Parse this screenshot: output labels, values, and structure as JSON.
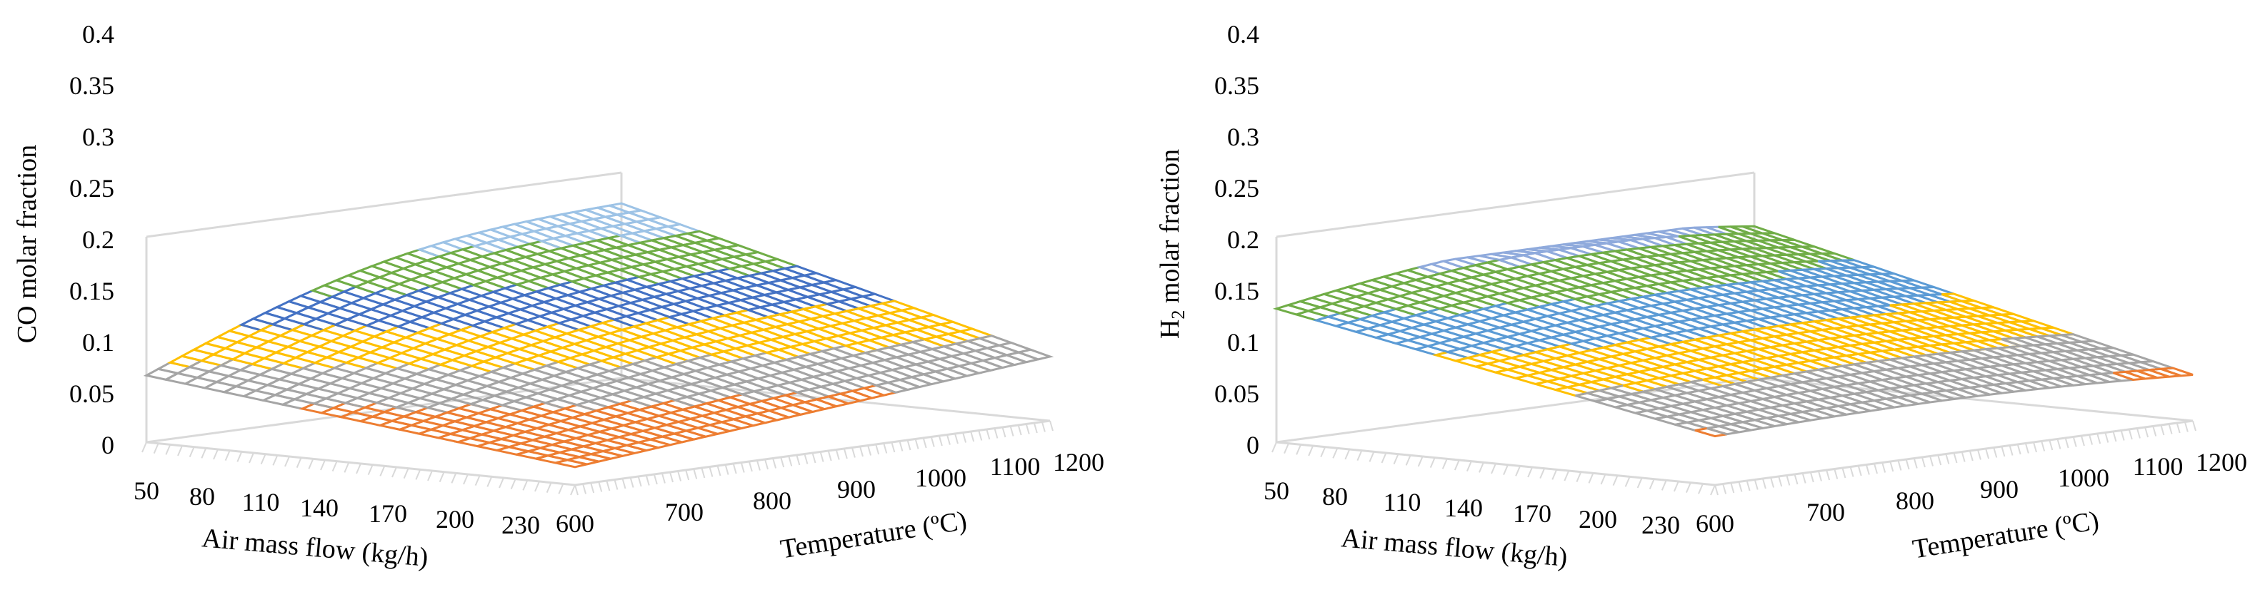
{
  "chart_data": [
    {
      "type": "surface",
      "zlabel": "CO molar fraction",
      "xlabel": "Air mass flow (kg/h)",
      "ylabel": "Temperature (ºC)",
      "zlim": [
        0,
        0.4
      ],
      "z_ticks": [
        "0",
        "0.05",
        "0.1",
        "0.15",
        "0.2",
        "0.25",
        "0.3",
        "0.35",
        "0.4"
      ],
      "x_ticks": [
        "50",
        "80",
        "110",
        "140",
        "170",
        "200",
        "230"
      ],
      "y_ticks": [
        "600",
        "700",
        "800",
        "900",
        "1000",
        "1100",
        "1200"
      ],
      "air_mass_flow": [
        50,
        230
      ],
      "temperature": [
        600,
        1200
      ],
      "corner_values": {
        "at_50_600": 0.13,
        "at_50_1200": 0.34,
        "at_230_600": 0.035,
        "at_230_1200": 0.125
      },
      "bands": [
        {
          "range": "0-0.05",
          "color": "#ED7D31"
        },
        {
          "range": "0.05-0.1",
          "color": "#ED7D31"
        },
        {
          "range": "0.1-0.15",
          "color": "#A5A5A5"
        },
        {
          "range": "0.15-0.2",
          "color": "#FFC000"
        },
        {
          "range": "0.2-0.25",
          "color": "#4472C4"
        },
        {
          "range": "0.25-0.3",
          "color": "#70AD47"
        },
        {
          "range": "0.3-0.35",
          "color": "#9DC3E6"
        },
        {
          "range": "0.35-0.4",
          "color": "#F4B183"
        }
      ]
    },
    {
      "type": "surface",
      "zlabel_main": "H",
      "zlabel_sub": "2",
      "zlabel_rest": " molar fraction",
      "xlabel": "Air mass flow (kg/h)",
      "ylabel": "Temperature (ºC)",
      "zlim": [
        0,
        0.4
      ],
      "z_ticks": [
        "0",
        "0.05",
        "0.1",
        "0.15",
        "0.2",
        "0.25",
        "0.3",
        "0.35",
        "0.4"
      ],
      "x_ticks": [
        "50",
        "80",
        "110",
        "140",
        "170",
        "200",
        "230"
      ],
      "y_ticks": [
        "600",
        "700",
        "800",
        "900",
        "1000",
        "1100",
        "1200"
      ],
      "air_mass_flow": [
        50,
        230
      ],
      "temperature": [
        600,
        1200
      ],
      "corner_values": {
        "at_50_600": 0.26,
        "at_50_1200": 0.28,
        "at_230_600": 0.095,
        "at_230_1200": 0.085
      },
      "bands": [
        {
          "range": "0-0.05",
          "color": "#ED7D31"
        },
        {
          "range": "0.05-0.1",
          "color": "#ED7D31"
        },
        {
          "range": "0.1-0.15",
          "color": "#A5A5A5"
        },
        {
          "range": "0.15-0.2",
          "color": "#FFC000"
        },
        {
          "range": "0.2-0.25",
          "color": "#5B9BD5"
        },
        {
          "range": "0.25-0.3",
          "color": "#70AD47"
        },
        {
          "range": "0.3-0.35",
          "color": "#8FAADC"
        },
        {
          "range": "0.35-0.4",
          "color": "#F4B183"
        }
      ]
    }
  ]
}
